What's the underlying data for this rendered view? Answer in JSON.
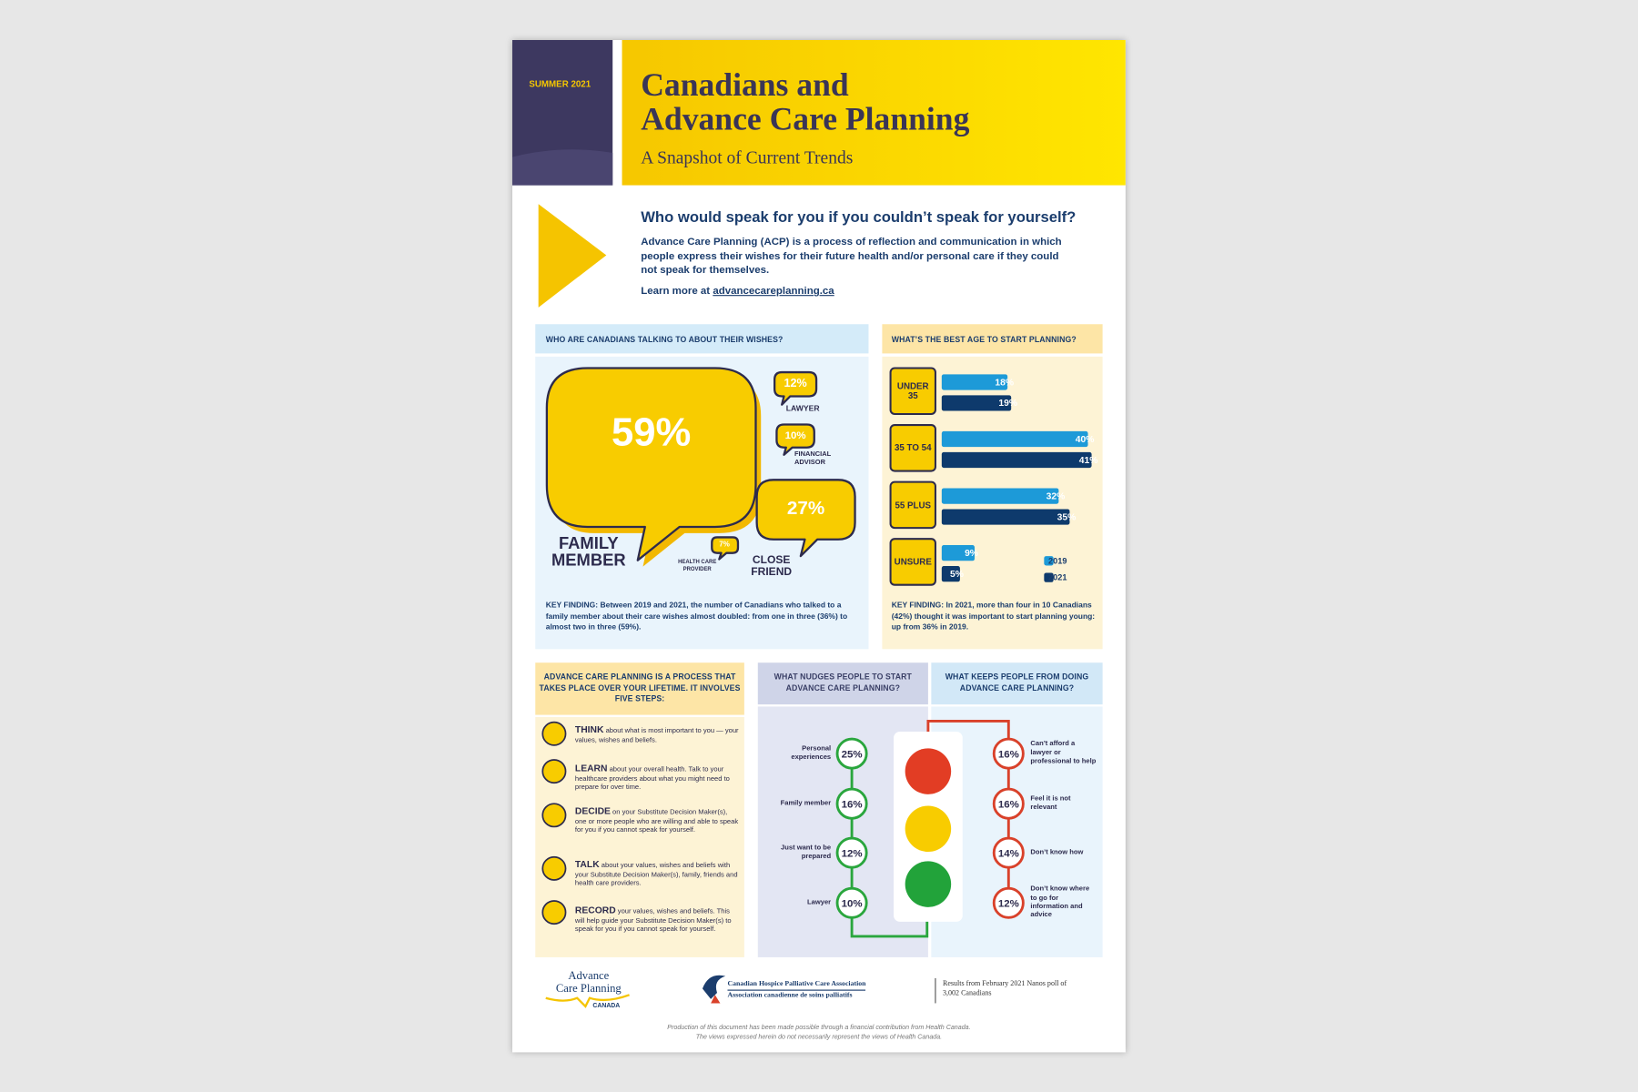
{
  "header": {
    "edition": "SUMMER 2021",
    "title": [
      "Canadians and",
      "Advance Care Planning"
    ],
    "subtitle": "A Snapshot of Current Trends"
  },
  "intro": {
    "question": "Who would speak for you if you couldn’t speak for yourself?",
    "body": "Advance Care Planning (ACP) is a process of reflection and communication in which people express their wishes for their future health and/or personal care if they could not speak for themselves.",
    "learn_more": "Learn more at",
    "link": "advancecareplanning.ca"
  },
  "talking": {
    "heading": "WHO ARE CANADIANS TALKING TO ABOUT THEIR WISHES?",
    "items": [
      {
        "value": "59%",
        "label": "FAMILY MEMBER"
      },
      {
        "value": "12%",
        "label": "LAWYER"
      },
      {
        "value": "10%",
        "label": "FINANCIAL ADVISOR"
      },
      {
        "value": "27%",
        "label": "CLOSE FRIEND"
      },
      {
        "value": "7%",
        "label": "HEALTH CARE PROVIDER"
      }
    ],
    "key_finding_label": "KEY FINDING:",
    "key_finding": "Between 2019 and 2021, the number of Canadians who talked to a family member about their care wishes almost doubled: from one in three (36%) to almost two in three (59%)."
  },
  "age": {
    "heading": "WHAT’S THE BEST AGE TO START PLANNING?",
    "categories": [
      "UNDER 35",
      "35 TO 54",
      "55 PLUS",
      "UNSURE"
    ],
    "series": [
      {
        "name": "2019",
        "color": "#1d9ad8",
        "values": [
          18,
          40,
          32,
          9
        ],
        "value_labels": [
          "18%",
          "40%",
          "32%",
          "9%"
        ]
      },
      {
        "name": "2021",
        "color": "#0e3a6c",
        "values": [
          19,
          41,
          35,
          5
        ],
        "value_labels": [
          "19%",
          "41%",
          "35%",
          "5%"
        ]
      }
    ],
    "key_finding_label": "KEY FINDING:",
    "key_finding": "In 2021, more than four in 10 Canadians (42%) thought it was important to start planning young: up from 36% in 2019."
  },
  "steps": {
    "heading": "ADVANCE CARE PLANNING IS A PROCESS THAT TAKES PLACE OVER YOUR LIFETIME. IT INVOLVES FIVE STEPS:",
    "items": [
      {
        "verb": "THINK",
        "text": "about what is most important to you — your values, wishes and beliefs."
      },
      {
        "verb": "LEARN",
        "text": "about your overall health. Talk to your healthcare providers about what you might need to prepare for over time."
      },
      {
        "verb": "DECIDE",
        "text": "on your Substitute Decision Maker(s), one or more people who are willing and able to speak for you if you cannot speak for yourself."
      },
      {
        "verb": "TALK",
        "text": "about your values, wishes and beliefs with your Substitute Decision Maker(s), family, friends and health care providers."
      },
      {
        "verb": "RECORD",
        "text": "your values, wishes and beliefs. This will help guide your Substitute Decision Maker(s) to speak for you if you cannot speak for yourself."
      }
    ]
  },
  "nudges": {
    "heading": "WHAT NUDGES PEOPLE TO START ADVANCE CARE PLANNING?",
    "items": [
      {
        "label": "Personal experiences",
        "value": "25%"
      },
      {
        "label": "Family member",
        "value": "16%"
      },
      {
        "label": "Just want to be prepared",
        "value": "12%"
      },
      {
        "label": "Lawyer",
        "value": "10%"
      }
    ]
  },
  "barriers": {
    "heading": "WHAT KEEPS PEOPLE FROM DOING ADVANCE CARE PLANNING?",
    "items": [
      {
        "label": "Can’t afford a lawyer or professional to help",
        "value": "16%"
      },
      {
        "label": "Feel it is not relevant",
        "value": "16%"
      },
      {
        "label": "Don’t know how",
        "value": "14%"
      },
      {
        "label": "Don’t know where to go for information and advice",
        "value": "12%"
      }
    ]
  },
  "footer": {
    "logo_acp": [
      "Advance",
      "Care Planning",
      "CANADA"
    ],
    "logo_chpca": [
      "Canadian Hospice Palliative Care Association",
      "Association canadienne de soins palliatifs"
    ],
    "poll_note": "Results from February 2021 Nanos poll of 3,002 Canadians",
    "production_note": [
      "Production of this document has been made possible through a financial contribution from Health Canada.",
      "The views expressed herein do not necessarily represent the views of Health Canada."
    ]
  }
}
